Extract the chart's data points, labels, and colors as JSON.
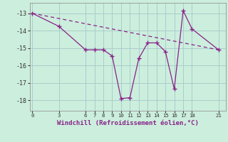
{
  "xlabel": "Windchill (Refroidissement éolien,°C)",
  "background_color": "#cceedd",
  "grid_color": "#aacccc",
  "line_color": "#882288",
  "data_x": [
    0,
    3,
    6,
    7,
    8,
    9,
    10,
    11,
    12,
    13,
    14,
    15,
    16,
    17,
    18,
    21
  ],
  "data_y": [
    -13.0,
    -13.75,
    -15.1,
    -15.1,
    -15.1,
    -15.45,
    -17.9,
    -17.85,
    -15.6,
    -14.7,
    -14.7,
    -15.2,
    -17.35,
    -12.85,
    -13.9,
    -15.1
  ],
  "trend_x": [
    0,
    21
  ],
  "trend_y": [
    -13.0,
    -15.1
  ],
  "xticks": [
    0,
    3,
    6,
    7,
    8,
    9,
    10,
    11,
    12,
    13,
    14,
    15,
    16,
    17,
    18,
    21
  ],
  "yticks": [
    -13,
    -14,
    -15,
    -16,
    -17,
    -18
  ],
  "ylim": [
    -18.6,
    -12.4
  ],
  "xlim": [
    -0.3,
    21.8
  ]
}
